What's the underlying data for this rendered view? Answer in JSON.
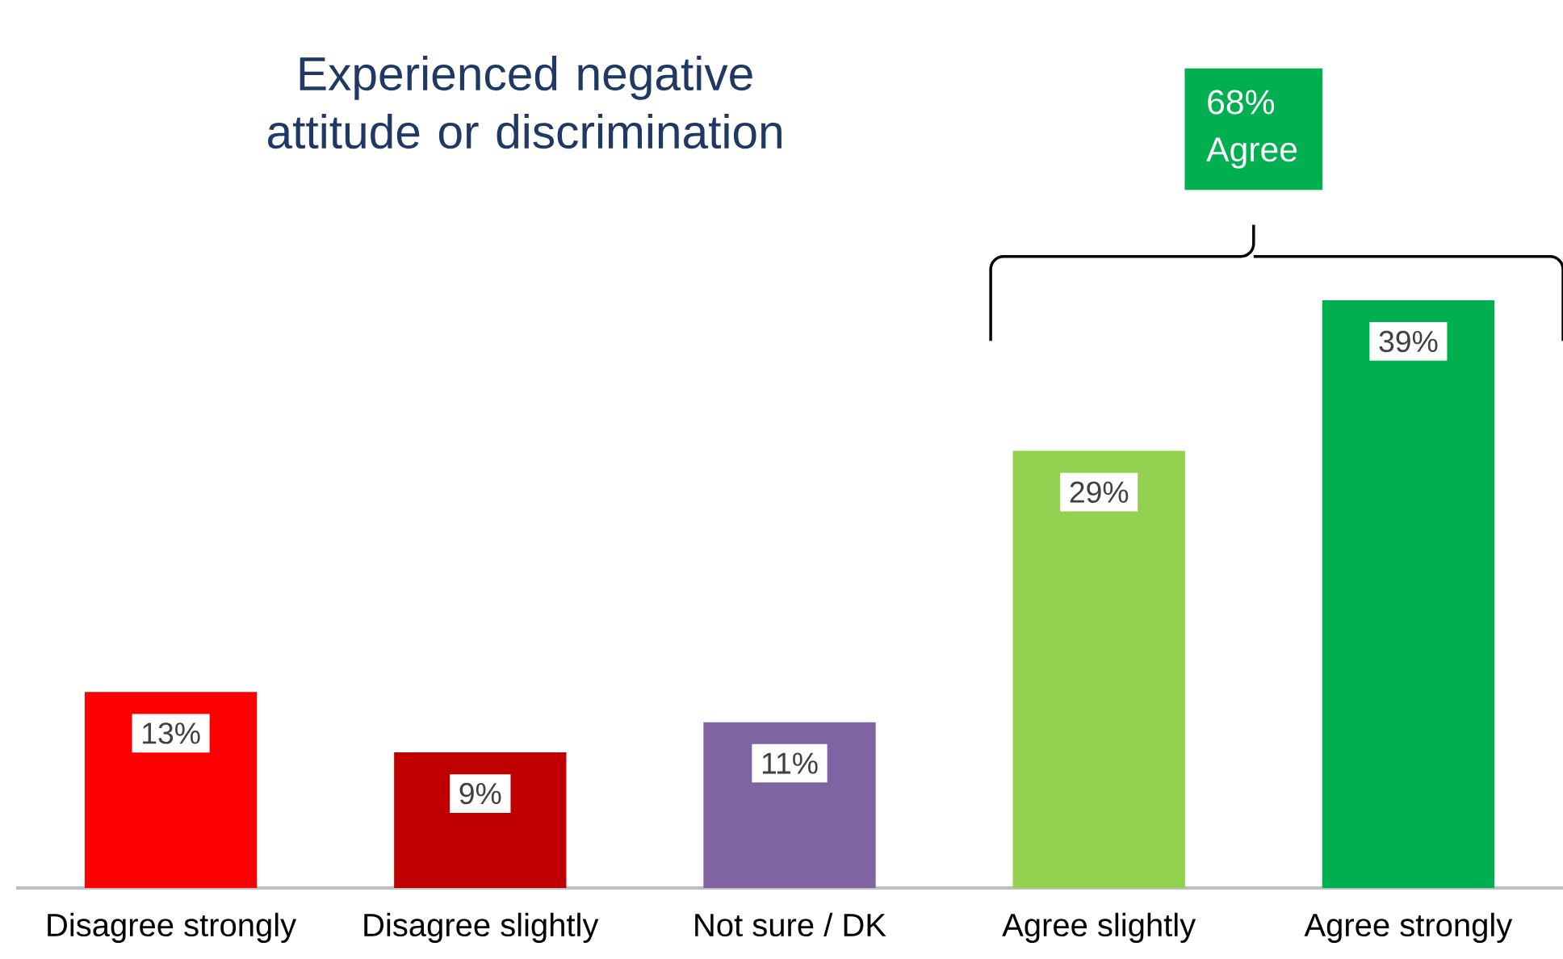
{
  "chart_data": {
    "type": "bar",
    "title": "Experienced negative attitude or discrimination",
    "categories": [
      "Disagree strongly",
      "Disagree slightly",
      "Not sure / DK",
      "Agree slightly",
      "Agree strongly"
    ],
    "values": [
      13,
      9,
      11,
      29,
      39
    ],
    "value_labels": [
      "13%",
      "9%",
      "11%",
      "29%",
      "39%"
    ],
    "colors": [
      "#ff0000",
      "#c00000",
      "#8064a2",
      "#92d050",
      "#00b050"
    ],
    "tick_labels": "x",
    "annotations": [
      "68% Agree"
    ]
  }
}
